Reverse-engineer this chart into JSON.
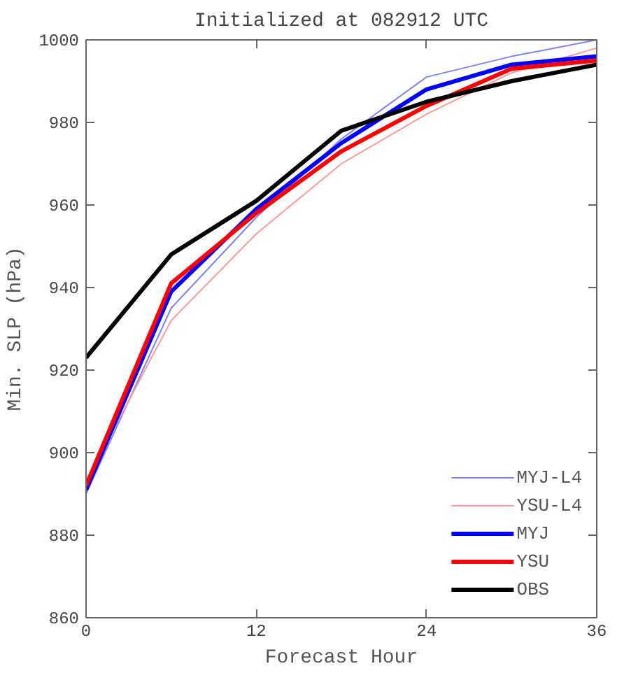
{
  "chart_data": {
    "type": "line",
    "title": "Initialized at 082912 UTC",
    "xlabel": "Forecast Hour",
    "ylabel": "Min. SLP (hPa)",
    "x": [
      0,
      6,
      12,
      18,
      24,
      30,
      36
    ],
    "xlim": [
      0,
      36
    ],
    "xticks": [
      0,
      12,
      24,
      36
    ],
    "ylim": [
      860,
      1000
    ],
    "yticks": [
      860,
      880,
      900,
      920,
      940,
      960,
      980,
      1000
    ],
    "grid": false,
    "legend": "bottom right",
    "marker": "none",
    "line_style": "solid",
    "series": [
      {
        "name": "MYJ-L4",
        "color": "#8080ff",
        "values": [
          890,
          935,
          957,
          976,
          991,
          996,
          1000
        ]
      },
      {
        "name": "YSU-L4",
        "color": "#ff9a9a",
        "values": [
          893,
          932,
          953,
          970,
          982,
          992,
          998
        ]
      },
      {
        "name": "MYJ",
        "color": "#0000ff",
        "values": [
          891,
          939,
          959,
          975,
          988,
          994,
          996
        ]
      },
      {
        "name": "YSU",
        "color": "#ff0000",
        "values": [
          892,
          941,
          958,
          973,
          984,
          993,
          995
        ]
      },
      {
        "name": "OBS",
        "color": "#000000",
        "values": [
          923,
          948,
          961,
          978,
          985,
          990,
          994
        ]
      }
    ]
  }
}
